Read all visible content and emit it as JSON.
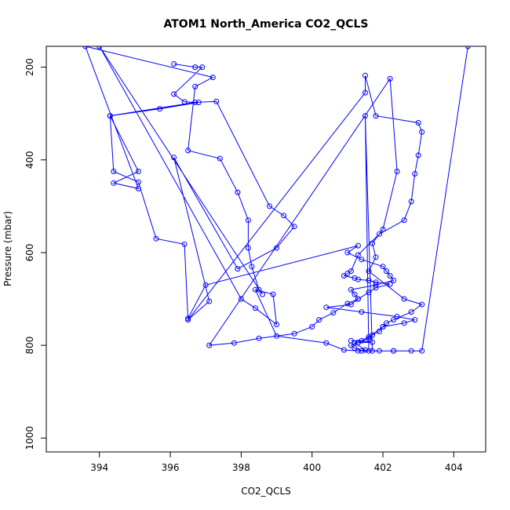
{
  "chart_data": {
    "type": "line",
    "title": "ATOM1 North_America CO2_QCLS",
    "xlabel": "CO2_QCLS",
    "ylabel": "Pressure (mbar)",
    "xlim": [
      392.5,
      404.9
    ],
    "ylim": [
      1030,
      155
    ],
    "y_reversed": true,
    "grid": false,
    "xticks": [
      394,
      396,
      398,
      400,
      402,
      404
    ],
    "yticks": [
      200,
      400,
      600,
      800,
      1000
    ],
    "series_color": "#0000ff",
    "marker": "open-circle",
    "x": [
      396.1,
      396.7,
      396.9,
      396.1,
      396.4,
      396.8,
      395.7,
      394.3,
      395.1,
      394.4,
      395.1,
      393.6,
      397.2,
      396.7,
      396.5,
      397.4,
      397.9,
      398.2,
      398.2,
      398.3,
      398.5,
      398.6,
      394.0,
      398.0,
      398.4,
      399.0,
      398.9,
      398.4,
      399.0,
      400.4,
      400.9,
      401.3,
      401.5,
      401.2,
      401.7,
      401.1,
      401.4,
      401.6,
      402.0,
      402.6,
      402.9,
      402.4,
      401.4,
      400.4,
      401.1,
      401.3,
      401.2,
      401.1,
      401.8,
      402.3,
      402.2,
      402.1,
      402.0,
      401.4,
      401.0,
      401.3,
      397.0,
      396.5,
      396.4,
      395.6,
      395.1,
      394.4,
      394.3,
      396.7,
      397.3,
      398.8,
      399.2,
      399.5,
      399.0,
      397.9,
      396.1,
      397.1,
      396.5,
      401.5,
      401.5,
      401.8,
      403.0,
      403.1,
      403.0,
      402.9,
      402.8,
      402.6,
      401.9,
      401.3,
      401.1,
      401.0,
      400.9,
      401.2,
      401.3,
      401.6,
      401.8,
      402.2,
      401.8,
      401.6,
      401.3,
      401.0,
      400.6,
      400.2,
      400.0,
      399.5,
      398.5,
      397.8,
      397.1,
      402.2,
      402.4,
      402.0,
      401.7,
      401.8,
      401.6,
      402.6,
      403.1,
      402.8,
      402.3,
      402.1,
      402.0,
      401.9,
      401.7,
      401.6,
      401.3,
      401.1,
      401.2,
      401.4,
      401.9,
      402.3,
      401.7,
      401.5,
      401.6,
      402.3,
      402.8,
      403.1,
      404.4
    ],
    "y": [
      193,
      200,
      200,
      258,
      275,
      276,
      290,
      305,
      425,
      450,
      462,
      155,
      222,
      242,
      380,
      397,
      470,
      530,
      590,
      630,
      680,
      690,
      155,
      700,
      720,
      755,
      690,
      680,
      780,
      795,
      810,
      812,
      810,
      795,
      793,
      790,
      790,
      782,
      760,
      752,
      745,
      738,
      728,
      718,
      712,
      700,
      690,
      680,
      670,
      660,
      650,
      640,
      630,
      615,
      600,
      585,
      670,
      742,
      582,
      570,
      448,
      425,
      305,
      276,
      274,
      500,
      520,
      544,
      590,
      635,
      395,
      705,
      745,
      255,
      218,
      305,
      320,
      340,
      390,
      430,
      490,
      530,
      560,
      605,
      640,
      645,
      650,
      655,
      658,
      660,
      664,
      668,
      676,
      686,
      700,
      710,
      730,
      745,
      760,
      775,
      785,
      795,
      800,
      225,
      425,
      550,
      580,
      610,
      640,
      700,
      712,
      728,
      745,
      752,
      760,
      770,
      778,
      786,
      794,
      800,
      806,
      812,
      812,
      812,
      812,
      305,
      812,
      812,
      812,
      812,
      155
    ]
  }
}
